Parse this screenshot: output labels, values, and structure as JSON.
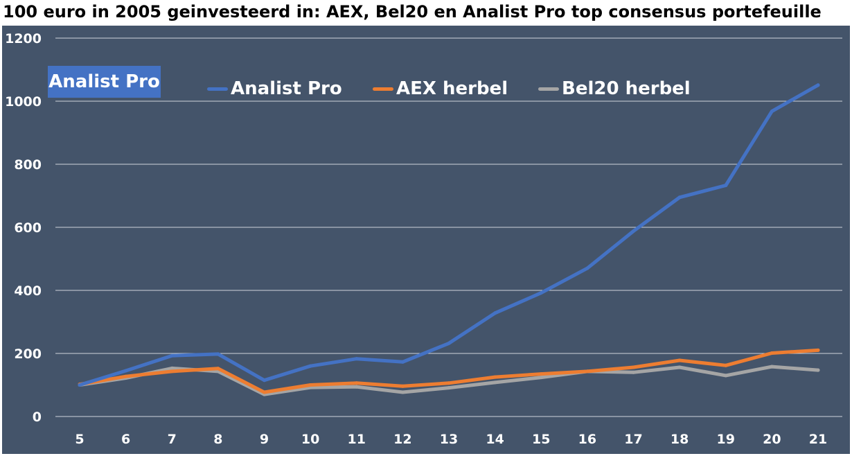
{
  "title": "100 euro in 2005 geinvesteerd in: AEX, Bel20 en Analist Pro top consensus portefeuille",
  "badge": "Analist Pro",
  "colors": {
    "background": "#44546a",
    "grid": "#d0d5dc",
    "tick_text": "#ffffff",
    "analist_pro": "#4472c4",
    "aex": "#ed7d31",
    "bel20": "#a5a5a5"
  },
  "chart_data": {
    "type": "line",
    "title": "100 euro in 2005 geinvesteerd in: AEX, Bel20 en Analist Pro top consensus portefeuille",
    "xlabel": "",
    "ylabel": "",
    "categories": [
      "5",
      "6",
      "7",
      "8",
      "9",
      "10",
      "11",
      "12",
      "13",
      "14",
      "15",
      "16",
      "17",
      "18",
      "19",
      "20",
      "21"
    ],
    "ylim": [
      0,
      1200
    ],
    "yticks": [
      0,
      200,
      400,
      600,
      800,
      1000,
      1200
    ],
    "grid": true,
    "legend_position": "top",
    "series": [
      {
        "name": "Analist Pro",
        "color": "#4472c4",
        "values": [
          100,
          145,
          193,
          198,
          115,
          160,
          183,
          173,
          232,
          328,
          392,
          470,
          588,
          695,
          733,
          968,
          1051
        ]
      },
      {
        "name": "AEX herbel",
        "color": "#ed7d31",
        "values": [
          102,
          127,
          143,
          152,
          77,
          100,
          106,
          96,
          106,
          125,
          135,
          143,
          156,
          178,
          162,
          201,
          210
        ]
      },
      {
        "name": "Bel20 herbel",
        "color": "#a5a5a5",
        "values": [
          100,
          122,
          153,
          143,
          70,
          92,
          94,
          77,
          91,
          108,
          124,
          143,
          140,
          156,
          130,
          158,
          147
        ]
      }
    ]
  }
}
